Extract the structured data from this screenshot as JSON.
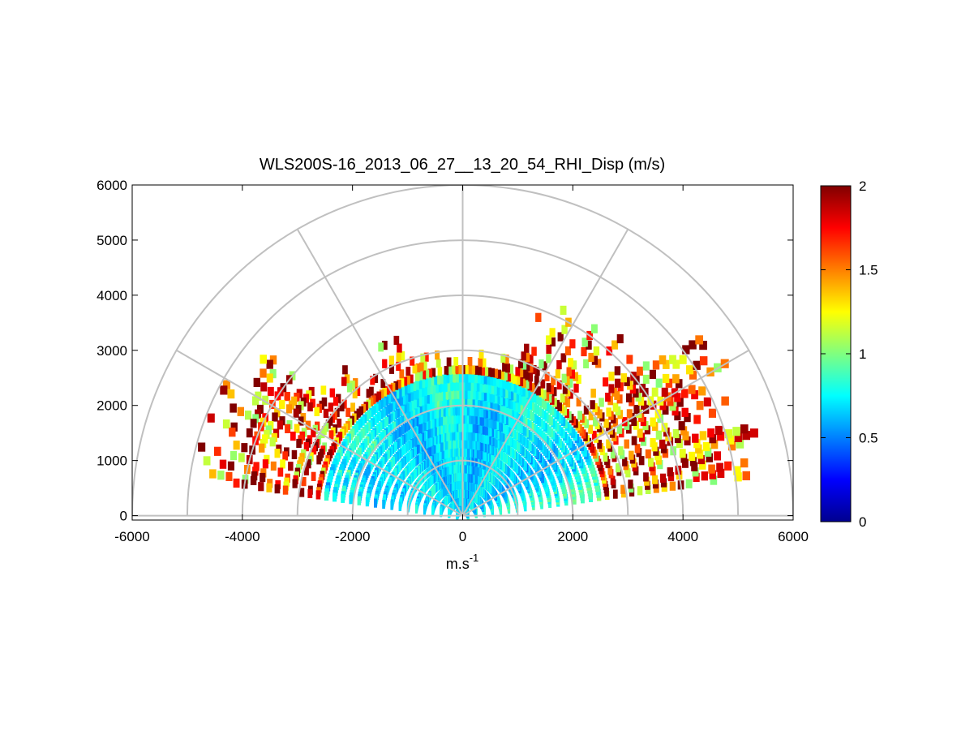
{
  "chart_data": {
    "type": "heatmap",
    "subtype": "polar-rhi",
    "title": "WLS200S-16_2013_06_27__13_20_54_RHI_Disp (m/s)",
    "xlabel_base": "m.s",
    "xlabel_exp": "-1",
    "ylabel": "",
    "xlim": [
      -6000,
      6000
    ],
    "ylim": [
      -80,
      6000
    ],
    "x_ticks": [
      -6000,
      -4000,
      -2000,
      0,
      2000,
      4000,
      6000
    ],
    "x_tick_labels": [
      "-6000",
      "-4000",
      "-2000",
      "0",
      "2000",
      "4000",
      "6000"
    ],
    "y_ticks": [
      0,
      1000,
      2000,
      3000,
      4000,
      5000,
      6000
    ],
    "y_tick_labels": [
      "0",
      "1000",
      "2000",
      "3000",
      "4000",
      "5000",
      "6000"
    ],
    "polar_grid": {
      "range_rings": [
        1000,
        2000,
        3000,
        4000,
        5000,
        6000
      ],
      "spokes_deg": [
        0,
        30,
        60,
        90,
        120,
        150,
        180
      ],
      "grid": true
    },
    "colorbar": {
      "colormap": "jet",
      "clim": [
        0,
        2
      ],
      "ticks": [
        0,
        0.5,
        1,
        1.5,
        2
      ],
      "tick_labels": [
        "0",
        "0.5",
        "1",
        "1.5",
        "2"
      ]
    },
    "elevation_coverage_deg": [
      8,
      172
    ],
    "approx_range_extent_m": 6000,
    "description_regions": [
      {
        "sector": "low elevations west (150-170 deg)",
        "range_m": [
          3000,
          5000
        ],
        "value": 2.0
      },
      {
        "sector": "near field all angles",
        "range_m": [
          0,
          2500
        ],
        "value": 0.75
      },
      {
        "sector": "low elevations east (10-40 deg)",
        "range_m": [
          3500,
          5500
        ],
        "value": 2.0
      }
    ]
  },
  "colors": {
    "axis": "#000000",
    "grid": "#c0c0c0",
    "background": "#ffffff"
  }
}
